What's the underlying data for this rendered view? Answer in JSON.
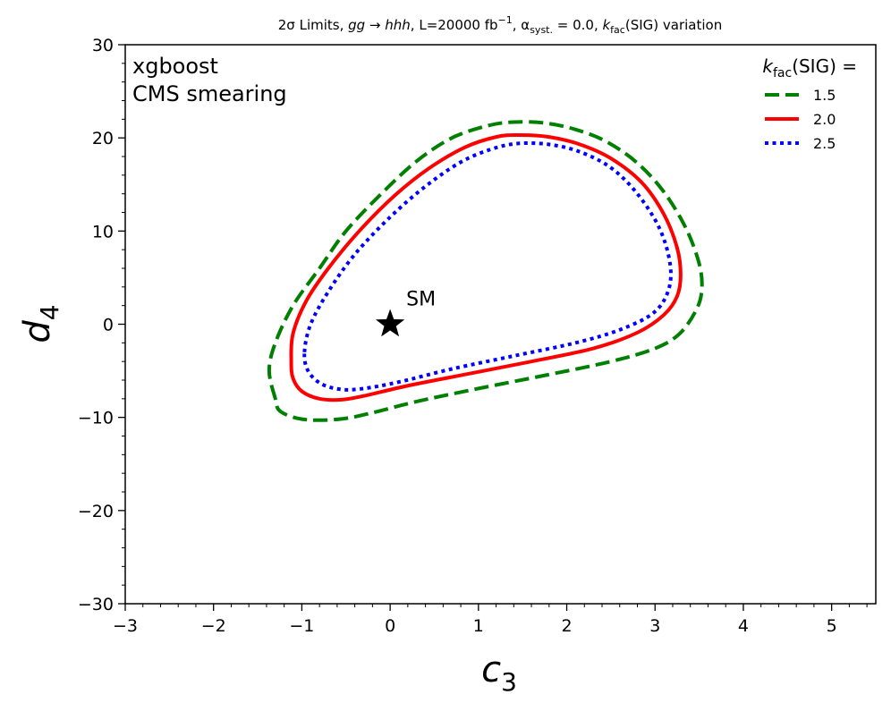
{
  "chart_data": {
    "type": "line",
    "title": {
      "part1": "2σ Limits, ",
      "process": "gg → hhh",
      "part2": ", L=20000 fb",
      "lumi_exp": "−1",
      "part3": ", α",
      "alpha_sub": "syst.",
      "part4": " = 0.0, ",
      "k": "k",
      "k_sub": "fac",
      "part5": "(SIG) variation"
    },
    "xlabel": {
      "main": "c",
      "sub": "3"
    },
    "ylabel": {
      "main": "d",
      "sub": "4"
    },
    "xlim": [
      -3,
      5.5
    ],
    "ylim": [
      -30,
      30
    ],
    "xticks": [
      -3,
      -2,
      -1,
      0,
      1,
      2,
      3,
      4,
      5
    ],
    "yticks": [
      -30,
      -20,
      -10,
      0,
      10,
      20,
      30
    ],
    "xtick_labels": [
      "−3",
      "−2",
      "−1",
      "0",
      "1",
      "2",
      "3",
      "4",
      "5"
    ],
    "ytick_labels": [
      "−30",
      "−20",
      "−10",
      "0",
      "10",
      "20",
      "30"
    ],
    "x_minor_step": 0.2,
    "y_minor_step": 2,
    "grid": false,
    "annotation": [
      "xgboost",
      "CMS smearing"
    ],
    "legend": {
      "placement": "top-right",
      "title_main": "k",
      "title_sub": "fac",
      "title_rest": "(SIG) ="
    },
    "series": [
      {
        "name": "1.5",
        "color": "#008000",
        "style": "dashed",
        "closed": true,
        "points": [
          [
            -1.3,
            -8
          ],
          [
            -1.37,
            -5
          ],
          [
            -1.3,
            -2
          ],
          [
            -1.1,
            2
          ],
          [
            -0.8,
            6
          ],
          [
            -0.5,
            10
          ],
          [
            -0.1,
            14
          ],
          [
            0.3,
            17.5
          ],
          [
            0.7,
            20
          ],
          [
            1.1,
            21.3
          ],
          [
            1.4,
            21.7
          ],
          [
            1.75,
            21.6
          ],
          [
            2.1,
            20.9
          ],
          [
            2.45,
            19.6
          ],
          [
            2.8,
            17.3
          ],
          [
            3.1,
            14.2
          ],
          [
            3.35,
            10.3
          ],
          [
            3.5,
            6.5
          ],
          [
            3.53,
            3.8
          ],
          [
            3.47,
            1.6
          ],
          [
            3.28,
            -1
          ],
          [
            3.0,
            -2.6
          ],
          [
            2.5,
            -4
          ],
          [
            1.8,
            -5.4
          ],
          [
            1,
            -6.9
          ],
          [
            0.3,
            -8.3
          ],
          [
            -0.2,
            -9.5
          ],
          [
            -0.5,
            -10.1
          ],
          [
            -0.8,
            -10.3
          ],
          [
            -1.05,
            -10.1
          ],
          [
            -1.25,
            -9.3
          ]
        ]
      },
      {
        "name": "2.0",
        "color": "#ff0000",
        "style": "solid",
        "closed": true,
        "points": [
          [
            -1.12,
            -4
          ],
          [
            -1.1,
            -1
          ],
          [
            -0.95,
            2.5
          ],
          [
            -0.7,
            6
          ],
          [
            -0.35,
            10
          ],
          [
            0.05,
            13.8
          ],
          [
            0.45,
            16.8
          ],
          [
            0.85,
            19
          ],
          [
            1.2,
            20.1
          ],
          [
            1.45,
            20.3
          ],
          [
            1.8,
            20.1
          ],
          [
            2.15,
            19.3
          ],
          [
            2.5,
            17.8
          ],
          [
            2.85,
            15.2
          ],
          [
            3.1,
            11.8
          ],
          [
            3.25,
            8.2
          ],
          [
            3.29,
            5.3
          ],
          [
            3.25,
            3
          ],
          [
            3.1,
            1
          ],
          [
            2.8,
            -0.9
          ],
          [
            2.3,
            -2.6
          ],
          [
            1.6,
            -4
          ],
          [
            0.9,
            -5.3
          ],
          [
            0.2,
            -6.6
          ],
          [
            -0.3,
            -7.7
          ],
          [
            -0.55,
            -8.1
          ],
          [
            -0.8,
            -8
          ],
          [
            -1.0,
            -7.2
          ],
          [
            -1.1,
            -5.8
          ]
        ]
      },
      {
        "name": "2.5",
        "color": "#0000ff",
        "style": "dotted",
        "closed": true,
        "points": [
          [
            -0.97,
            -3
          ],
          [
            -0.9,
            0
          ],
          [
            -0.7,
            3.5
          ],
          [
            -0.4,
            7.5
          ],
          [
            0,
            11.5
          ],
          [
            0.4,
            14.8
          ],
          [
            0.8,
            17.4
          ],
          [
            1.15,
            18.8
          ],
          [
            1.45,
            19.4
          ],
          [
            1.8,
            19.3
          ],
          [
            2.15,
            18.5
          ],
          [
            2.5,
            16.8
          ],
          [
            2.8,
            14
          ],
          [
            3.05,
            10.3
          ],
          [
            3.17,
            6.5
          ],
          [
            3.15,
            3.6
          ],
          [
            2.98,
            1.2
          ],
          [
            2.6,
            -0.6
          ],
          [
            2.1,
            -2
          ],
          [
            1.4,
            -3.4
          ],
          [
            0.7,
            -4.8
          ],
          [
            0.1,
            -6.2
          ],
          [
            -0.3,
            -6.9
          ],
          [
            -0.55,
            -7
          ],
          [
            -0.78,
            -6.4
          ],
          [
            -0.93,
            -5
          ]
        ]
      }
    ],
    "sm_point": {
      "x": 0,
      "y": 0,
      "label": "SM",
      "marker": "star"
    }
  }
}
